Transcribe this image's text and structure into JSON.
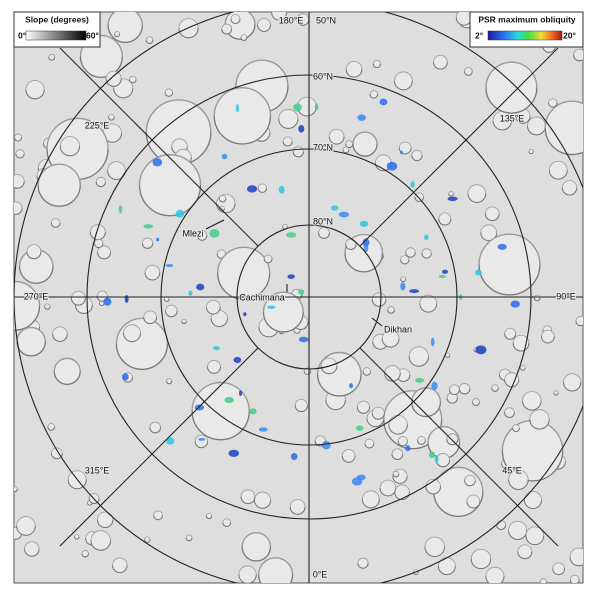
{
  "legends": {
    "slope": {
      "title": "Slope (degrees)",
      "min": "0°",
      "max": "60°"
    },
    "psr": {
      "title": "PSR maximum obliquity",
      "min": "2°",
      "max": "20°"
    }
  },
  "longitude_labels": [
    "180°E",
    "225°E",
    "135°E",
    "270°E",
    "90°E",
    "315°E",
    "45°E",
    "0°E"
  ],
  "latitude_labels": [
    "50°N",
    "60°N",
    "70°N",
    "80°N"
  ],
  "craters": [
    "Mlezi",
    "Cachimana",
    "Dikhan"
  ]
}
